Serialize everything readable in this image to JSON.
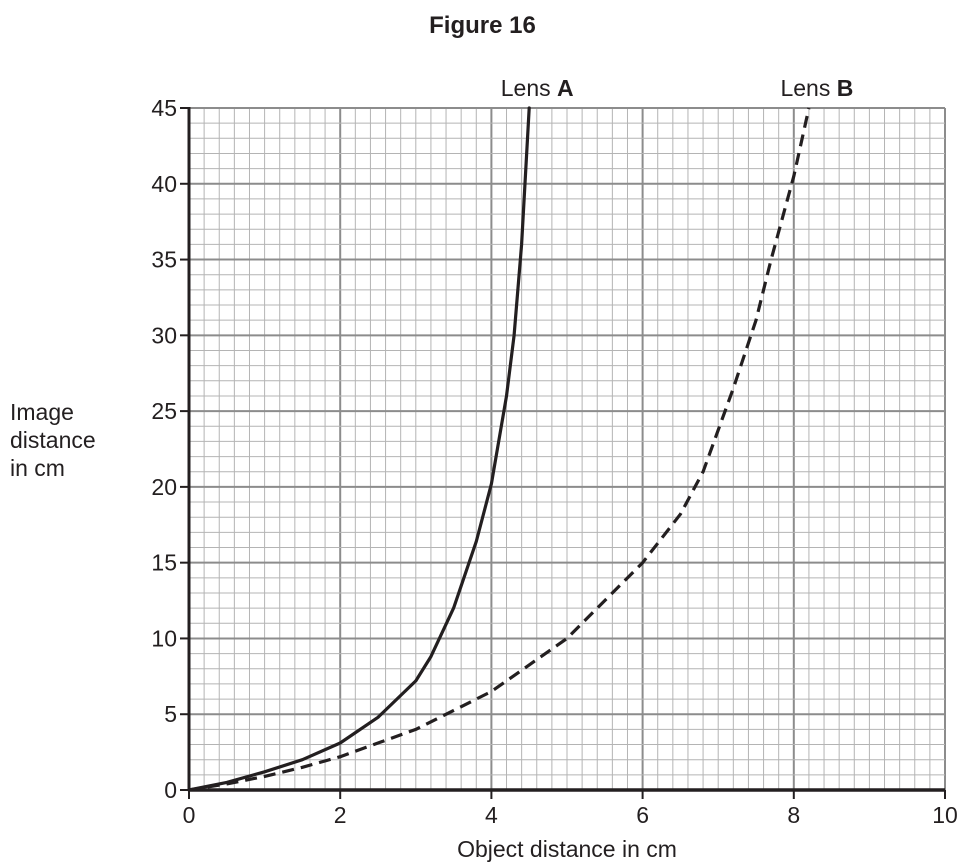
{
  "figure_title": "Figure 16",
  "chart_data": {
    "type": "line",
    "title": "Figure 16",
    "xlabel": "Object distance in cm",
    "ylabel": [
      "Image",
      "distance",
      "in cm"
    ],
    "xlim": [
      0,
      10
    ],
    "ylim": [
      0,
      45
    ],
    "x_ticks": [
      0,
      2,
      4,
      6,
      8,
      10
    ],
    "y_ticks": [
      0,
      5,
      10,
      15,
      20,
      25,
      30,
      35,
      40,
      45
    ],
    "x_minor_step": 0.2,
    "y_minor_step": 1,
    "grid": true,
    "series": [
      {
        "name": "Lens A",
        "label_prefix": "Lens ",
        "label_bold": "A",
        "style": "solid",
        "color": "#231f20",
        "x": [
          0,
          0.5,
          1.0,
          1.5,
          2.0,
          2.5,
          3.0,
          3.2,
          3.5,
          3.8,
          4.0,
          4.2,
          4.3,
          4.4,
          4.5
        ],
        "y": [
          0,
          0.5,
          1.2,
          2.0,
          3.1,
          4.8,
          7.2,
          8.8,
          12.0,
          16.4,
          20.2,
          26.0,
          30.0,
          36.0,
          45.0
        ]
      },
      {
        "name": "Lens B",
        "label_prefix": "Lens ",
        "label_bold": "B",
        "style": "dashed",
        "color": "#231f20",
        "x": [
          0,
          0.5,
          1.0,
          1.5,
          2.0,
          3.0,
          4.0,
          5.0,
          6.0,
          6.5,
          6.8,
          7.2,
          7.5,
          7.7,
          8.0,
          8.2
        ],
        "y": [
          0,
          0.4,
          0.9,
          1.5,
          2.2,
          4.0,
          6.5,
          10.0,
          15.0,
          18.2,
          21.0,
          26.5,
          31.0,
          35.0,
          40.5,
          45.0
        ]
      }
    ]
  }
}
